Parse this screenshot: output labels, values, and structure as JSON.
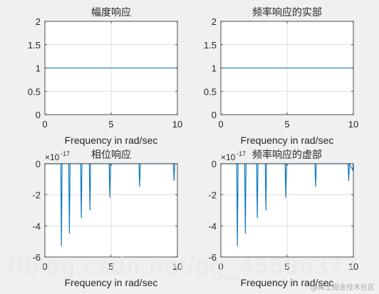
{
  "figure": {
    "background": "#f0f0f0",
    "line_color": "#0072bd",
    "grid_color": "#dfdfdf"
  },
  "chart_data": [
    {
      "type": "line",
      "title": "幅度响应",
      "xlabel": "Frequency in rad/sec",
      "ylabel": "",
      "xlim": [
        0,
        10
      ],
      "ylim": [
        0,
        2
      ],
      "xticks": [
        0,
        5,
        10
      ],
      "yticks": [
        0,
        0.5,
        1,
        1.5,
        2
      ],
      "ytick_labels": [
        "0",
        "0.5",
        "1",
        "1.5",
        "2"
      ],
      "grid": true,
      "exponent_label": "",
      "series": [
        {
          "x": [
            0,
            10
          ],
          "y": [
            1,
            1
          ]
        }
      ]
    },
    {
      "type": "line",
      "title": "频率响应的实部",
      "xlabel": "Frequency in rad/sec",
      "ylabel": "",
      "xlim": [
        0,
        10
      ],
      "ylim": [
        0,
        2
      ],
      "xticks": [
        0,
        5,
        10
      ],
      "yticks": [
        0,
        0.5,
        1,
        1.5,
        2
      ],
      "ytick_labels": [
        "0",
        "0.5",
        "1",
        "1.5",
        "2"
      ],
      "grid": true,
      "exponent_label": "",
      "series": [
        {
          "x": [
            0,
            10
          ],
          "y": [
            1,
            1
          ]
        }
      ]
    },
    {
      "type": "line",
      "title": "相位响应",
      "xlabel": "Frequency in rad/sec",
      "ylabel": "",
      "xlim": [
        0,
        10
      ],
      "ylim": [
        -6,
        0
      ],
      "xticks": [
        0,
        5,
        10
      ],
      "yticks": [
        -6,
        -4,
        -2,
        0
      ],
      "ytick_labels": [
        "-6",
        "-4",
        "-2",
        "0"
      ],
      "grid": true,
      "exponent_label": "×10",
      "exponent_power": "-17",
      "series": [
        {
          "x": [
            0,
            1.2,
            1.25,
            1.3,
            1.8,
            1.85,
            1.9,
            2.7,
            2.75,
            2.8,
            3.35,
            3.4,
            3.45,
            4.85,
            4.9,
            4.95,
            7.1,
            7.15,
            7.2,
            9.7,
            9.75,
            9.8,
            10
          ],
          "y": [
            0,
            0,
            -5.3,
            0,
            0,
            -4.5,
            0,
            0,
            -3.5,
            0,
            0,
            -3.0,
            0,
            0,
            -2.2,
            0,
            0,
            -1.5,
            0,
            0,
            -1.1,
            0,
            0
          ]
        }
      ]
    },
    {
      "type": "line",
      "title": "频率响应的虚部",
      "xlabel": "Frequency in rad/sec",
      "ylabel": "",
      "xlim": [
        0,
        10
      ],
      "ylim": [
        -6,
        0
      ],
      "xticks": [
        0,
        5,
        10
      ],
      "yticks": [
        -6,
        -4,
        -2,
        0
      ],
      "ytick_labels": [
        "-6",
        "-4",
        "-2",
        "0"
      ],
      "grid": true,
      "exponent_label": "×10",
      "exponent_power": "-17",
      "series": [
        {
          "x": [
            0,
            1.2,
            1.25,
            1.3,
            1.8,
            1.85,
            1.9,
            2.7,
            2.75,
            2.8,
            3.35,
            3.4,
            3.45,
            4.85,
            4.9,
            4.95,
            7.1,
            7.15,
            7.2,
            9.6,
            9.65,
            9.7,
            9.95,
            10
          ],
          "y": [
            0,
            0,
            -5.3,
            0,
            0,
            -4.5,
            0,
            0,
            -3.5,
            0,
            0,
            -3.0,
            0,
            0,
            -2.2,
            0,
            0,
            -1.5,
            0,
            0,
            -1.1,
            0,
            -0.4,
            0
          ]
        }
      ]
    }
  ],
  "watermark": {
    "url_text": "://blog.csdn.net/qq_45596377",
    "site_text": "@稀土掘金技术社区"
  }
}
